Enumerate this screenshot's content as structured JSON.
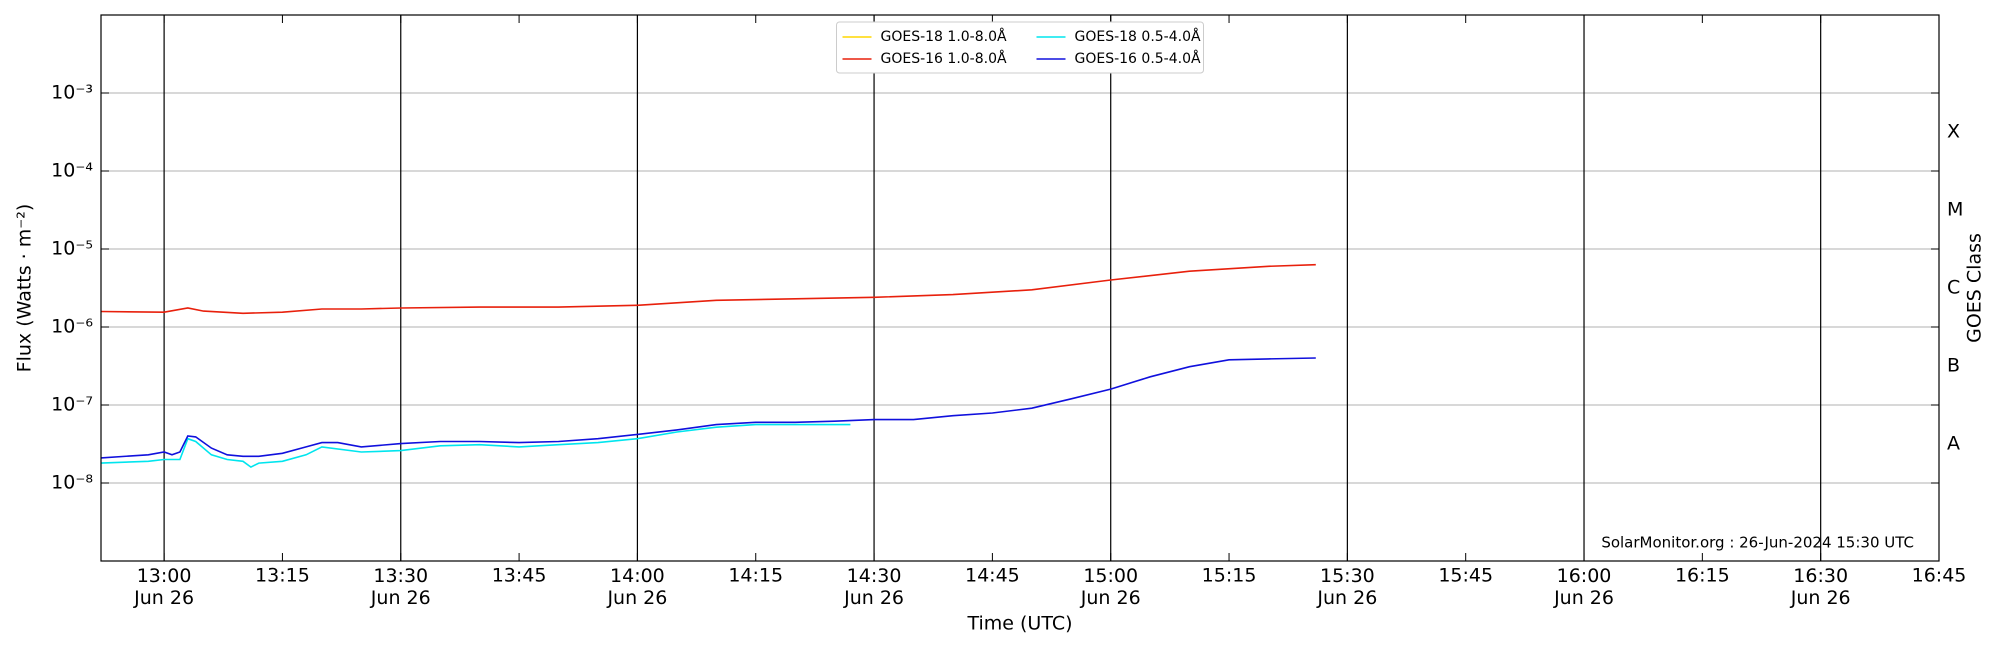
{
  "chart_data": {
    "type": "line",
    "xlabel": "Time (UTC)",
    "ylabel": "Flux (Watts · m⁻²)",
    "y2label": "GOES Class",
    "annotation": "SolarMonitor.org : 26-Jun-2024 15:30 UTC",
    "log_y": true,
    "grid": true,
    "legend": "upper center",
    "xlim": [
      "12:52",
      "16:45"
    ],
    "xticks": [
      {
        "value": "13:00",
        "label": "13:00\nJun 26"
      },
      {
        "value": "13:15",
        "label": "13:15"
      },
      {
        "value": "13:30",
        "label": "13:30\nJun 26"
      },
      {
        "value": "13:45",
        "label": "13:45"
      },
      {
        "value": "14:00",
        "label": "14:00\nJun 26"
      },
      {
        "value": "14:15",
        "label": "14:15"
      },
      {
        "value": "14:30",
        "label": "14:30\nJun 26"
      },
      {
        "value": "14:45",
        "label": "14:45"
      },
      {
        "value": "15:00",
        "label": "15:00\nJun 26"
      },
      {
        "value": "15:15",
        "label": "15:15"
      },
      {
        "value": "15:30",
        "label": "15:30\nJun 26"
      },
      {
        "value": "15:45",
        "label": "15:45"
      },
      {
        "value": "16:00",
        "label": "16:00\nJun 26"
      },
      {
        "value": "16:15",
        "label": "16:15"
      },
      {
        "value": "16:30",
        "label": "16:30\nJun 26"
      },
      {
        "value": "16:45",
        "label": "16:45"
      }
    ],
    "ylim": [
      1e-09,
      0.01
    ],
    "yticks": [
      {
        "value": 1e-08,
        "label": "10⁻⁸"
      },
      {
        "value": 1e-07,
        "label": "10⁻⁷"
      },
      {
        "value": 1e-06,
        "label": "10⁻⁶"
      },
      {
        "value": 1e-05,
        "label": "10⁻⁵"
      },
      {
        "value": 0.0001,
        "label": "10⁻⁴"
      },
      {
        "value": 0.001,
        "label": "10⁻³"
      }
    ],
    "y2ticks": [
      {
        "value": 1e-08,
        "label": "A"
      },
      {
        "value": 1e-07,
        "label": "B"
      },
      {
        "value": 1e-06,
        "label": "C"
      },
      {
        "value": 1e-05,
        "label": "M"
      },
      {
        "value": 0.0001,
        "label": "X"
      }
    ],
    "series": [
      {
        "name": "GOES-18 1.0-8.0Å",
        "color": "#ffd700",
        "x": [],
        "values": []
      },
      {
        "name": "GOES-16 1.0-8.0Å",
        "color": "#e8200c",
        "x": [
          "12:52",
          "13:00",
          "13:03",
          "13:05",
          "13:10",
          "13:15",
          "13:20",
          "13:25",
          "13:30",
          "13:40",
          "13:50",
          "14:00",
          "14:10",
          "14:20",
          "14:30",
          "14:40",
          "14:50",
          "15:00",
          "15:10",
          "15:20",
          "15:26"
        ],
        "values": [
          1.58e-06,
          1.55e-06,
          1.75e-06,
          1.6e-06,
          1.5e-06,
          1.55e-06,
          1.7e-06,
          1.7e-06,
          1.75e-06,
          1.8e-06,
          1.8e-06,
          1.9e-06,
          2.2e-06,
          2.3e-06,
          2.4e-06,
          2.6e-06,
          3e-06,
          4e-06,
          5.2e-06,
          6e-06,
          6.3e-06
        ]
      },
      {
        "name": "GOES-18 0.5-4.0Å",
        "color": "#00e5ee",
        "x": [
          "12:52",
          "12:58",
          "13:00",
          "13:02",
          "13:03",
          "13:04",
          "13:06",
          "13:08",
          "13:10",
          "13:11",
          "13:12",
          "13:15",
          "13:18",
          "13:20",
          "13:25",
          "13:30",
          "13:35",
          "13:40",
          "13:45",
          "13:50",
          "13:55",
          "14:00",
          "14:05",
          "14:10",
          "14:15",
          "14:20",
          "14:27"
        ],
        "values": [
          1.8e-08,
          1.9e-08,
          2e-08,
          2e-08,
          3.7e-08,
          3.4e-08,
          2.3e-08,
          2e-08,
          1.9e-08,
          1.6e-08,
          1.8e-08,
          1.9e-08,
          2.3e-08,
          2.9e-08,
          2.5e-08,
          2.6e-08,
          3e-08,
          3.1e-08,
          2.9e-08,
          3.1e-08,
          3.3e-08,
          3.7e-08,
          4.5e-08,
          5.2e-08,
          5.6e-08,
          5.6e-08,
          5.6e-08
        ]
      },
      {
        "name": "GOES-16 0.5-4.0Å",
        "color": "#1010dd",
        "x": [
          "12:52",
          "12:58",
          "13:00",
          "13:01",
          "13:02",
          "13:03",
          "13:04",
          "13:06",
          "13:08",
          "13:10",
          "13:12",
          "13:15",
          "13:18",
          "13:20",
          "13:22",
          "13:25",
          "13:30",
          "13:35",
          "13:40",
          "13:45",
          "13:50",
          "13:55",
          "14:00",
          "14:05",
          "14:10",
          "14:15",
          "14:20",
          "14:25",
          "14:30",
          "14:35",
          "14:40",
          "14:45",
          "14:50",
          "14:55",
          "15:00",
          "15:05",
          "15:10",
          "15:15",
          "15:20",
          "15:26"
        ],
        "values": [
          2.1e-08,
          2.3e-08,
          2.5e-08,
          2.3e-08,
          2.5e-08,
          4e-08,
          3.9e-08,
          2.8e-08,
          2.3e-08,
          2.2e-08,
          2.2e-08,
          2.4e-08,
          2.9e-08,
          3.3e-08,
          3.3e-08,
          2.9e-08,
          3.2e-08,
          3.4e-08,
          3.4e-08,
          3.3e-08,
          3.4e-08,
          3.7e-08,
          4.2e-08,
          4.8e-08,
          5.6e-08,
          6e-08,
          6e-08,
          6.2e-08,
          6.5e-08,
          6.5e-08,
          7.3e-08,
          7.9e-08,
          9.1e-08,
          1.2e-07,
          1.6e-07,
          2.3e-07,
          3.1e-07,
          3.8e-07,
          3.9e-07,
          4e-07
        ]
      }
    ]
  }
}
